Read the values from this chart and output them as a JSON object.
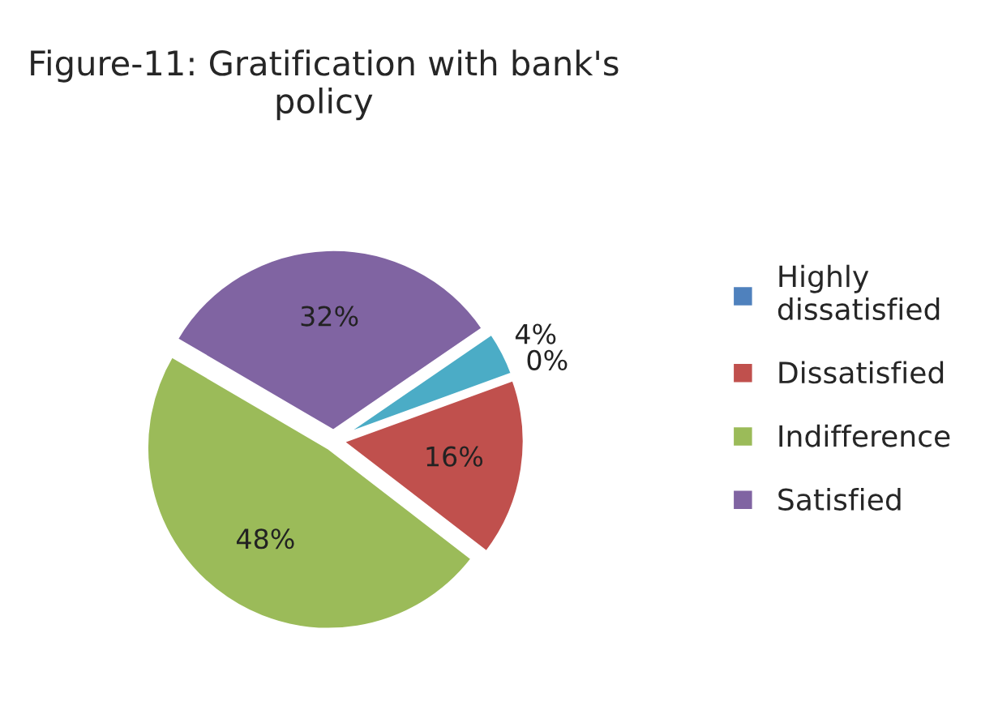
{
  "chart_data": {
    "type": "pie",
    "title": "Figure-11: Gratification with bank's policy",
    "categories": [
      "Highly dissatisfied",
      "Dissatisfied",
      "Indifference",
      "Satisfied",
      null
    ],
    "values": [
      0,
      16,
      48,
      32,
      4
    ],
    "colors": [
      "#4f81bd",
      "#c0504d",
      "#9bbb59",
      "#8064a2",
      "#4bacc6"
    ],
    "value_labels": [
      "0%",
      "16%",
      "48%",
      "32%",
      "4%"
    ],
    "legend": "right"
  }
}
